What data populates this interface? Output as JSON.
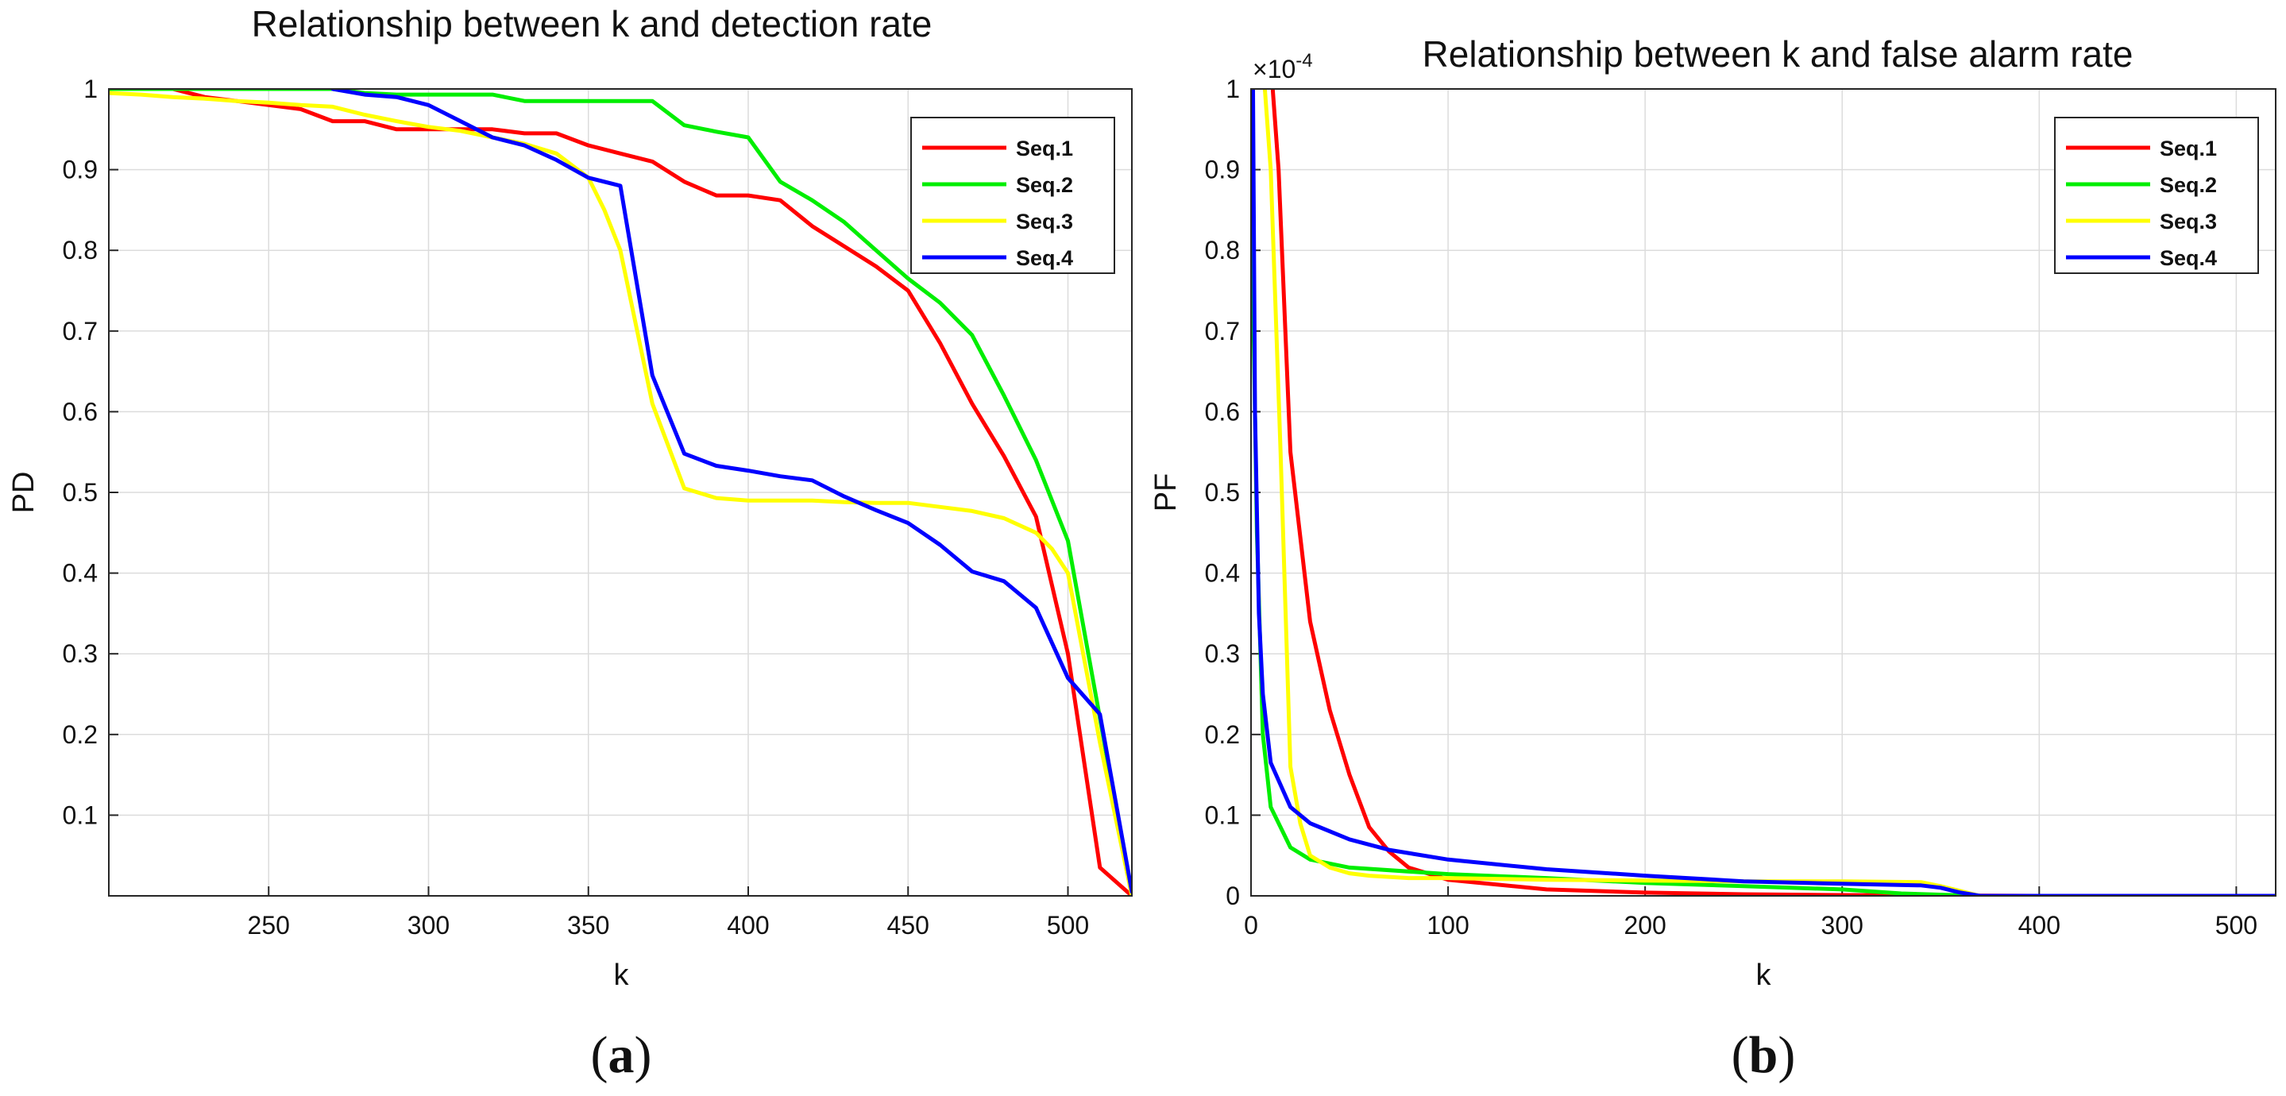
{
  "figure": {
    "panel_labels": [
      {
        "open": "(",
        "letter": "a",
        "close": ")"
      },
      {
        "open": "(",
        "letter": "b",
        "close": ")"
      }
    ]
  },
  "chart_data": [
    {
      "type": "line",
      "title": "Relationship between k and detection rate",
      "xlabel": "k",
      "ylabel": "PD",
      "xlim": [
        200,
        520
      ],
      "ylim": [
        0,
        1
      ],
      "xticks": [
        250,
        300,
        350,
        400,
        450,
        500
      ],
      "yticks": [
        0.1,
        0.2,
        0.3,
        0.4,
        0.5,
        0.6,
        0.7,
        0.8,
        0.9,
        1
      ],
      "ytick_labels": [
        "0.1",
        "0.2",
        "0.3",
        "0.4",
        "0.5",
        "0.6",
        "0.7",
        "0.8",
        "0.9",
        "1"
      ],
      "grid": true,
      "legend": "top-right",
      "series": [
        {
          "name": "Seq.1",
          "color": "#ff0000",
          "x": [
            200,
            210,
            220,
            230,
            240,
            250,
            260,
            270,
            280,
            290,
            300,
            310,
            320,
            330,
            340,
            350,
            360,
            370,
            380,
            390,
            400,
            410,
            420,
            430,
            440,
            450,
            460,
            470,
            480,
            490,
            500,
            510,
            520
          ],
          "y": [
            1,
            1,
            1,
            0.99,
            0.985,
            0.98,
            0.975,
            0.96,
            0.96,
            0.95,
            0.95,
            0.95,
            0.95,
            0.945,
            0.945,
            0.93,
            0.92,
            0.91,
            0.885,
            0.868,
            0.868,
            0.862,
            0.83,
            0.805,
            0.78,
            0.75,
            0.685,
            0.61,
            0.545,
            0.47,
            0.3,
            0.035,
            0.0
          ]
        },
        {
          "name": "Seq.2",
          "color": "#00ee00",
          "x": [
            200,
            210,
            220,
            230,
            240,
            250,
            260,
            270,
            280,
            290,
            300,
            310,
            320,
            330,
            340,
            350,
            360,
            370,
            380,
            390,
            400,
            410,
            420,
            430,
            440,
            450,
            460,
            470,
            480,
            490,
            500,
            510,
            520
          ],
          "y": [
            1,
            1,
            1,
            1,
            1,
            1,
            1,
            1,
            0.995,
            0.993,
            0.993,
            0.993,
            0.993,
            0.985,
            0.985,
            0.985,
            0.985,
            0.985,
            0.955,
            0.947,
            0.94,
            0.885,
            0.862,
            0.835,
            0.8,
            0.765,
            0.735,
            0.695,
            0.62,
            0.54,
            0.44,
            0.22,
            0.0
          ]
        },
        {
          "name": "Seq.3",
          "color": "#ffff00",
          "x": [
            200,
            210,
            220,
            230,
            240,
            250,
            260,
            270,
            280,
            290,
            300,
            310,
            320,
            330,
            340,
            350,
            355,
            360,
            370,
            380,
            390,
            400,
            410,
            420,
            430,
            440,
            450,
            460,
            470,
            480,
            490,
            495,
            500,
            510,
            520
          ],
          "y": [
            0.995,
            0.993,
            0.99,
            0.988,
            0.985,
            0.983,
            0.98,
            0.978,
            0.968,
            0.96,
            0.953,
            0.948,
            0.94,
            0.932,
            0.92,
            0.89,
            0.85,
            0.8,
            0.61,
            0.505,
            0.493,
            0.49,
            0.49,
            0.49,
            0.488,
            0.487,
            0.487,
            0.482,
            0.477,
            0.468,
            0.45,
            0.43,
            0.4,
            0.19,
            0.0
          ]
        },
        {
          "name": "Seq.4",
          "color": "#0000ff",
          "x": [
            270,
            280,
            290,
            300,
            310,
            320,
            330,
            340,
            350,
            360,
            370,
            380,
            390,
            400,
            410,
            420,
            430,
            440,
            450,
            460,
            470,
            480,
            490,
            500,
            510,
            520
          ],
          "y": [
            1,
            0.993,
            0.99,
            0.98,
            0.96,
            0.94,
            0.93,
            0.912,
            0.89,
            0.88,
            0.645,
            0.548,
            0.533,
            0.527,
            0.52,
            0.515,
            0.495,
            0.478,
            0.462,
            0.435,
            0.402,
            0.39,
            0.357,
            0.27,
            0.225,
            0.005
          ]
        }
      ]
    },
    {
      "type": "line",
      "title": "Relationship between k and false alarm rate",
      "xlabel": "k",
      "ylabel": "PF",
      "y_multiplier": "×10",
      "y_exponent": "-4",
      "xlim": [
        0,
        520
      ],
      "ylim": [
        0,
        1
      ],
      "xticks": [
        0,
        100,
        200,
        300,
        400,
        500
      ],
      "yticks": [
        0,
        0.1,
        0.2,
        0.3,
        0.4,
        0.5,
        0.6,
        0.7,
        0.8,
        0.9,
        1
      ],
      "ytick_labels": [
        "0",
        "0.1",
        "0.2",
        "0.3",
        "0.4",
        "0.5",
        "0.6",
        "0.7",
        "0.8",
        "0.9",
        "1"
      ],
      "grid": true,
      "legend": "top-right",
      "series": [
        {
          "name": "Seq.1",
          "color": "#ff0000",
          "x": [
            11,
            14,
            20,
            30,
            40,
            50,
            60,
            70,
            80,
            100,
            150,
            200,
            250,
            300,
            350,
            400,
            520
          ],
          "y": [
            1,
            0.9,
            0.55,
            0.34,
            0.23,
            0.15,
            0.085,
            0.055,
            0.035,
            0.02,
            0.008,
            0.004,
            0.002,
            0.001,
            0.0005,
            0,
            0
          ]
        },
        {
          "name": "Seq.2",
          "color": "#00ee00",
          "x": [
            0,
            1,
            3,
            6,
            10,
            20,
            30,
            50,
            100,
            150,
            200,
            250,
            300,
            330,
            370,
            520
          ],
          "y": [
            1,
            0.75,
            0.45,
            0.2,
            0.11,
            0.06,
            0.045,
            0.035,
            0.027,
            0.022,
            0.016,
            0.012,
            0.008,
            0.003,
            0,
            0
          ]
        },
        {
          "name": "Seq.3",
          "color": "#ffff00",
          "x": [
            7,
            10,
            15,
            20,
            25,
            30,
            40,
            50,
            60,
            80,
            100,
            150,
            200,
            250,
            300,
            340,
            350,
            370,
            520
          ],
          "y": [
            1,
            0.9,
            0.55,
            0.16,
            0.09,
            0.05,
            0.035,
            0.028,
            0.025,
            0.022,
            0.022,
            0.02,
            0.019,
            0.018,
            0.018,
            0.017,
            0.012,
            0,
            0
          ]
        },
        {
          "name": "Seq.4",
          "color": "#0000ff",
          "x": [
            1,
            2,
            4,
            6,
            10,
            20,
            30,
            50,
            70,
            100,
            150,
            200,
            250,
            300,
            340,
            350,
            360,
            370,
            520
          ],
          "y": [
            1,
            0.6,
            0.35,
            0.25,
            0.165,
            0.11,
            0.09,
            0.07,
            0.057,
            0.045,
            0.033,
            0.025,
            0.018,
            0.015,
            0.013,
            0.01,
            0.004,
            0,
            0
          ]
        }
      ]
    }
  ]
}
